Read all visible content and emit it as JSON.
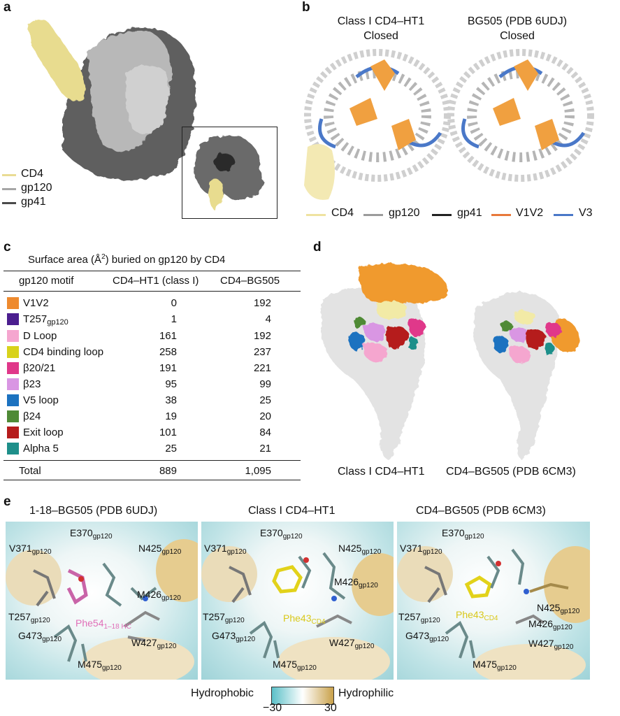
{
  "panel_a": {
    "label": "a",
    "legend": [
      {
        "name": "CD4",
        "color": "#e9dc94"
      },
      {
        "name": "gp120",
        "color": "#a6a6a6"
      },
      {
        "name": "gp41",
        "color": "#4a4a4a"
      }
    ]
  },
  "panel_b": {
    "label": "b",
    "left_title_1": "Class I CD4–HT1",
    "left_title_2": "Closed",
    "right_title_1": "BG505 (PDB 6UDJ)",
    "right_title_2": "Closed",
    "legend": [
      {
        "name": "CD4",
        "color": "#efe3a0"
      },
      {
        "name": "gp120",
        "color": "#9b9b9b"
      },
      {
        "name": "gp41",
        "color": "#222222"
      },
      {
        "name": "V1V2",
        "color": "#e8793b"
      },
      {
        "name": "V3",
        "color": "#4a78c8"
      }
    ]
  },
  "panel_c": {
    "label": "c",
    "title_pre": "Surface area (Å",
    "title_sup": "2",
    "title_post": ") buried on gp120 by CD4",
    "col_motif": "gp120 motif",
    "col_ht1": "CD4–HT1 (class I)",
    "col_bg505": "CD4–BG505",
    "rows": [
      {
        "motif": "V1V2",
        "sub": "",
        "ht1": "0",
        "bg505": "192",
        "color": "#ee8a2e"
      },
      {
        "motif": "T257",
        "sub": "gp120",
        "ht1": "1",
        "bg505": "4",
        "color": "#4b1e8f"
      },
      {
        "motif": "D Loop",
        "sub": "",
        "ht1": "161",
        "bg505": "192",
        "color": "#f5a6cf"
      },
      {
        "motif": "CD4 binding loop",
        "sub": "",
        "ht1": "258",
        "bg505": "237",
        "color": "#d8d21b"
      },
      {
        "motif": "β20/21",
        "sub": "",
        "ht1": "191",
        "bg505": "221",
        "color": "#e0378a"
      },
      {
        "motif": "β23",
        "sub": "",
        "ht1": "95",
        "bg505": "99",
        "color": "#d996e3"
      },
      {
        "motif": "V5 loop",
        "sub": "",
        "ht1": "38",
        "bg505": "25",
        "color": "#1c72c0"
      },
      {
        "motif": "β24",
        "sub": "",
        "ht1": "19",
        "bg505": "20",
        "color": "#4f8a36"
      },
      {
        "motif": "Exit loop",
        "sub": "",
        "ht1": "101",
        "bg505": "84",
        "color": "#b51c1c"
      },
      {
        "motif": "Alpha 5",
        "sub": "",
        "ht1": "25",
        "bg505": "21",
        "color": "#1e8f8a"
      }
    ],
    "total_label": "Total",
    "total_ht1": "889",
    "total_bg505": "1,095"
  },
  "panel_d": {
    "label": "d",
    "left_caption": "Class I CD4–HT1",
    "right_caption": "CD4–BG505 (PDB 6CM3)"
  },
  "panel_e": {
    "label": "e",
    "titles": [
      "1-18–BG505 (PDB 6UDJ)",
      "Class I CD4–HT1",
      "CD4–BG505 (PDB 6CM3)"
    ],
    "p1": {
      "v371": "V371",
      "e370": "E370",
      "n425": "N425",
      "m426": "M426",
      "t257": "T257",
      "g473": "G473",
      "w427": "W427",
      "m475": "M475",
      "phe": "Phe54",
      "phe_sub": "1–18 HC",
      "sub": "gp120"
    },
    "p2": {
      "v371": "V371",
      "e370": "E370",
      "n425": "N425",
      "m426": "M426",
      "t257": "T257",
      "g473": "G473",
      "w427": "W427",
      "m475": "M475",
      "phe": "Phe43",
      "phe_sub": "CD4",
      "sub": "gp120"
    },
    "p3": {
      "v371": "V371",
      "e370": "E370",
      "n425": "N425",
      "m426": "M426",
      "t257": "T257",
      "g473": "G473",
      "w427": "W427",
      "m475": "M475",
      "phe": "Phe43",
      "phe_sub": "CD4",
      "sub": "gp120"
    },
    "colorbar": {
      "left_label": "Hydrophobic",
      "right_label": "Hydrophilic",
      "min": "−30",
      "max": "30",
      "color_low": "#5bc0c8",
      "color_mid": "#ffffff",
      "color_high": "#c9a14a"
    }
  }
}
